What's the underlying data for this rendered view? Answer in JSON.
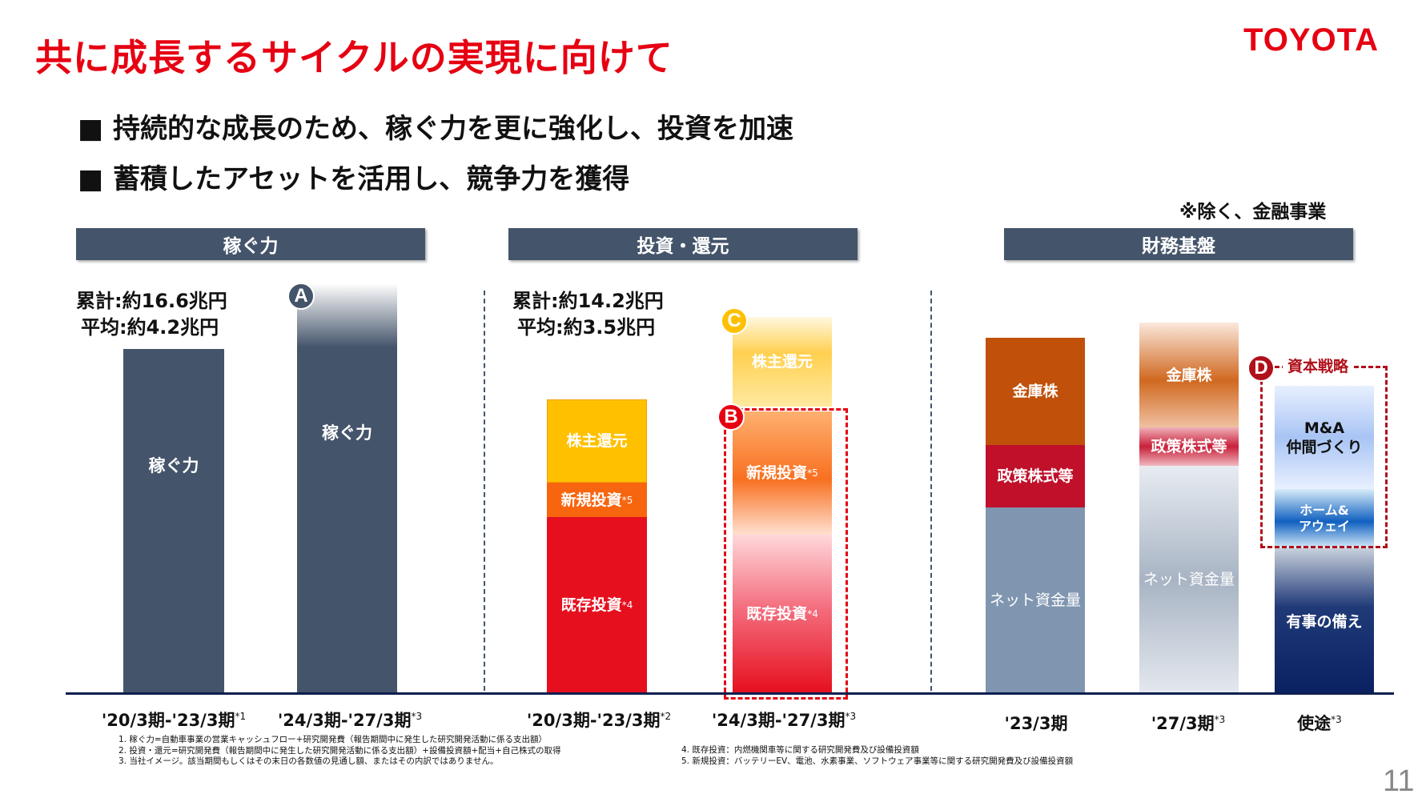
{
  "title": "共に成長するサイクルの実現に向けて",
  "logo": "TOYOTA",
  "bullets": [
    "■ 持続的な成長のため、稼ぐ力を更に強化し、投資を加速",
    "■ 蓄積したアセットを活用し、競争力を獲得"
  ],
  "note": "※除く、金融事業",
  "headers": [
    "稼ぐ力",
    "投資・還元",
    "財務基盤"
  ],
  "earning": {
    "total": "累計:約16.6兆円",
    "average": "平均:約4.2兆円",
    "bar_label": "稼ぐ力",
    "badge": "A"
  },
  "invest": {
    "total": "累計:約14.2兆円",
    "average": "平均:約3.5兆円",
    "shareholder": "株主還元",
    "new": "新規投資",
    "new_sup": "*5",
    "existing": "既存投資",
    "existing_sup": "*4",
    "badge_c": "C",
    "badge_b": "B"
  },
  "finance": {
    "treasury": "金庫株",
    "policy": "政策株式等",
    "net": "ネット資金量",
    "ma": "M&A\n仲間づくり",
    "home": "ホーム&\nアウェイ",
    "emergency": "有事の備え",
    "badge_d": "D",
    "capital": "資本戦略"
  },
  "xlabels": [
    {
      "t": "'20/3期-'23/3期",
      "s": "*1"
    },
    {
      "t": "'24/3期-'27/3期",
      "s": "*3"
    },
    {
      "t": "'20/3期-'23/3期",
      "s": "*2"
    },
    {
      "t": "'24/3期-'27/3期",
      "s": "*3"
    },
    {
      "t": "'23/3期",
      "s": ""
    },
    {
      "t": "'27/3期",
      "s": "*3"
    },
    {
      "t": "使途",
      "s": "*3"
    }
  ],
  "footnotes": [
    "1. 稼ぐ力=自動車事業の営業キャッシュフロー+研究開発費（報告期間中に発生した研究開発活動に係る支出額）",
    "2. 投資・還元=研究開発費（報告期間中に発生した研究開発活動に係る支出額）+設備投資額+配当+自己株式の取得",
    "3. 当社イメージ。該当期間もしくはその末日の各数値の見通し額、またはその内訳ではありません。",
    "4. 既存投資：内燃機関車等に関する研究開発費及び設備投資額",
    "5. 新規投資：バッテリーEV、電池、水素事業、ソフトウェア事業等に関する研究開発費及び設備投資額"
  ],
  "page": "11",
  "colors": {
    "brand": "#e60012",
    "header": "#44546a",
    "bar": "#44546a"
  }
}
